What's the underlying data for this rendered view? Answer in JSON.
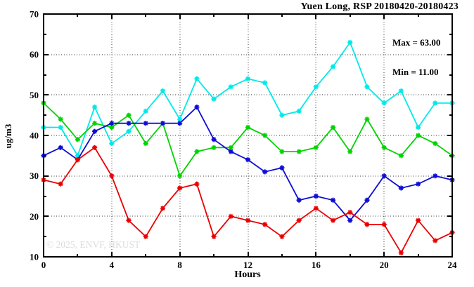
{
  "title": "Yuen Long, RSP 20180420-20180423",
  "stats": {
    "max_label": "Max = 63.00",
    "min_label": "Min = 11.00"
  },
  "watermark": "© 2025, ENVF, HKUST",
  "chart_data": {
    "type": "line",
    "title": "Yuen Long, RSP 20180420-20180423",
    "xlabel": "Hours",
    "ylabel": "ug/m3",
    "xlim": [
      0,
      24
    ],
    "ylim": [
      10,
      70
    ],
    "grid": "dotted-at-major",
    "legend_position": "none",
    "annotations": [
      "Max = 63.00",
      "Min = 11.00"
    ],
    "x_major_ticks": [
      0,
      4,
      8,
      12,
      16,
      20,
      24
    ],
    "x_minor_ticks": [
      2,
      6,
      10,
      14,
      18,
      22
    ],
    "y_major_ticks": [
      10,
      20,
      30,
      40,
      50,
      60,
      70
    ],
    "y_minor_ticks": [
      15,
      25,
      35,
      45,
      55,
      65
    ],
    "x_gridlines": [
      4,
      8,
      12,
      16,
      20
    ],
    "y_gridlines": [
      20,
      30,
      40,
      50,
      60
    ],
    "x": [
      0,
      1,
      2,
      3,
      4,
      5,
      6,
      7,
      8,
      9,
      10,
      11,
      12,
      13,
      14,
      15,
      16,
      17,
      18,
      19,
      20,
      21,
      22,
      23,
      24
    ],
    "series": [
      {
        "name": "series-cyan",
        "color": "#00e9e9",
        "marker": "star",
        "values": [
          42,
          42,
          35,
          47,
          38,
          41,
          46,
          51,
          44,
          54,
          49,
          52,
          54,
          53,
          45,
          46,
          52,
          57,
          63,
          52,
          48,
          51,
          42,
          48,
          48
        ]
      },
      {
        "name": "series-green",
        "color": "#00d400",
        "marker": "star",
        "values": [
          48,
          44,
          39,
          43,
          42,
          45,
          38,
          43,
          30,
          36,
          37,
          37,
          42,
          40,
          36,
          36,
          37,
          42,
          36,
          44,
          37,
          35,
          40,
          38,
          35
        ]
      },
      {
        "name": "series-blue",
        "color": "#0d0dd6",
        "marker": "star",
        "values": [
          35,
          37,
          34,
          41,
          43,
          43,
          43,
          43,
          43,
          47,
          39,
          36,
          34,
          31,
          32,
          24,
          25,
          24,
          19,
          24,
          30,
          27,
          28,
          30,
          29
        ]
      },
      {
        "name": "series-red",
        "color": "#ea0000",
        "marker": "star",
        "values": [
          29,
          28,
          34,
          37,
          30,
          19,
          15,
          22,
          27,
          28,
          15,
          20,
          19,
          18,
          15,
          19,
          22,
          19,
          21,
          18,
          18,
          11,
          19,
          14,
          16
        ]
      }
    ]
  }
}
